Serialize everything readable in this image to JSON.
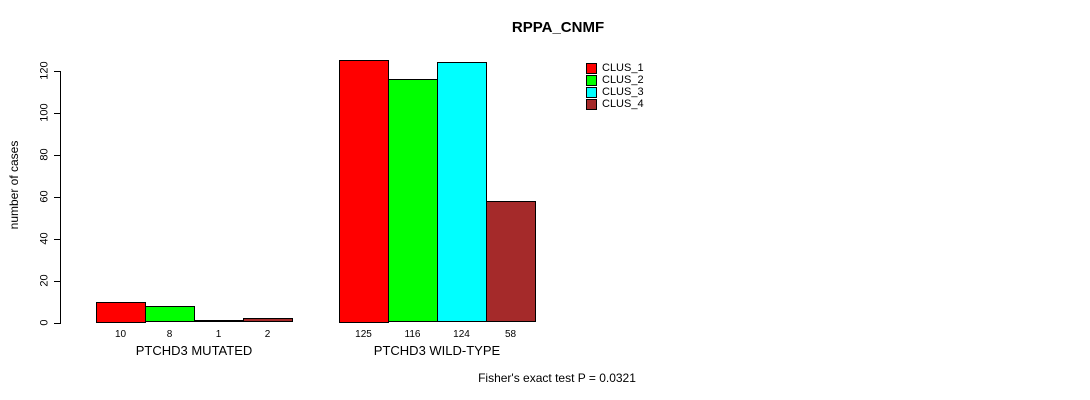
{
  "chart_data": {
    "type": "bar",
    "title": "RPPA_CNMF",
    "xlabel": "",
    "ylabel": "number of cases",
    "ylim": [
      0,
      120
    ],
    "yticks": [
      0,
      20,
      40,
      60,
      80,
      100,
      120
    ],
    "grid": false,
    "bar_value_labels_shown": true,
    "categories": [
      "PTCHD3 MUTATED",
      "PTCHD3 WILD-TYPE"
    ],
    "series": [
      {
        "name": "CLUS_1",
        "color": "#ff0000",
        "values": [
          10,
          125
        ]
      },
      {
        "name": "CLUS_2",
        "color": "#00ff00",
        "values": [
          8,
          116
        ]
      },
      {
        "name": "CLUS_3",
        "color": "#00ffff",
        "values": [
          1,
          124
        ]
      },
      {
        "name": "CLUS_4",
        "color": "#a52a2a",
        "values": [
          2,
          58
        ]
      }
    ],
    "legend": {
      "position": "top-right",
      "entries": [
        {
          "label": "CLUS_1",
          "color": "#ff0000"
        },
        {
          "label": "CLUS_2",
          "color": "#00ff00"
        },
        {
          "label": "CLUS_3",
          "color": "#00ffff"
        },
        {
          "label": "CLUS_4",
          "color": "#a52a2a"
        }
      ]
    },
    "annotation": "Fisher's exact test P = 0.0321",
    "axis_color": "#000000",
    "bar_border_color": "#000000"
  }
}
